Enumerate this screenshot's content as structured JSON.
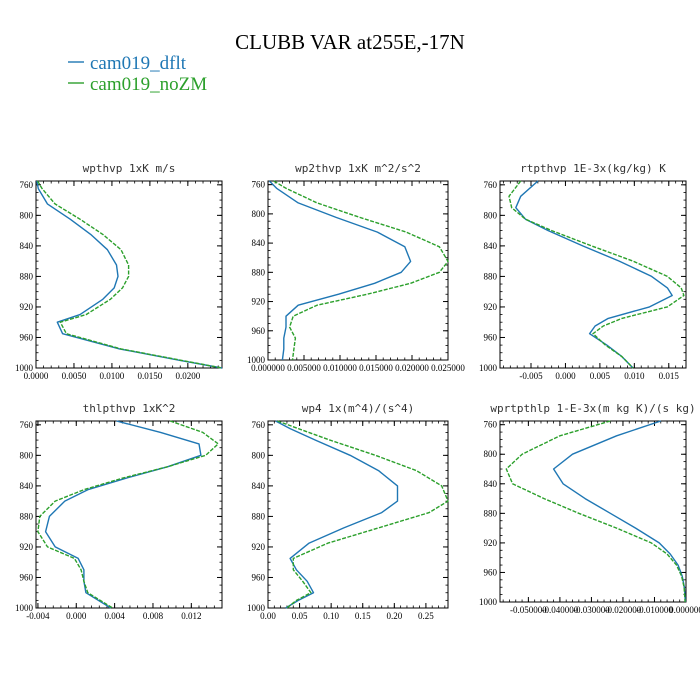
{
  "figure": {
    "title": "CLUBB VAR at255E,-17N",
    "legend": [
      {
        "name": "cam019_dflt",
        "color": "#1f77b4"
      },
      {
        "name": "cam019_noZM",
        "color": "#2ca02c"
      }
    ]
  },
  "chart_data": [
    {
      "type": "line",
      "title": "wpthvp  1xK m/s",
      "xlim": [
        0,
        0.0245
      ],
      "ylim": [
        1000,
        755
      ],
      "xticks": [
        0,
        0.005,
        0.01,
        0.015,
        0.02
      ],
      "xtick_labels": [
        "0.0000",
        "0.0050",
        "0.0100",
        "0.0150",
        "0.0200"
      ],
      "yticks": [
        760,
        800,
        840,
        880,
        920,
        960,
        1000
      ],
      "y": [
        755,
        765,
        785,
        805,
        825,
        845,
        865,
        880,
        895,
        910,
        930,
        940,
        955,
        975,
        990,
        1000
      ],
      "series": [
        {
          "name": "cam019_dflt",
          "x": [
            0.0001,
            0.0003,
            0.0015,
            0.0045,
            0.0072,
            0.0094,
            0.0106,
            0.0108,
            0.0103,
            0.0088,
            0.0058,
            0.0028,
            0.0035,
            0.011,
            0.019,
            0.0245
          ]
        },
        {
          "name": "cam019_noZM",
          "x": [
            0.0002,
            0.0008,
            0.0025,
            0.0058,
            0.0088,
            0.0112,
            0.0122,
            0.0122,
            0.0114,
            0.0098,
            0.0066,
            0.0032,
            0.004,
            0.0112,
            0.0192,
            0.0245
          ]
        }
      ]
    },
    {
      "type": "line",
      "title": "wp2thvp  1xK m^2/s^2",
      "xlim": [
        0,
        0.025
      ],
      "ylim": [
        1000,
        755
      ],
      "xticks": [
        0,
        0.005,
        0.01,
        0.015,
        0.02,
        0.025
      ],
      "xtick_labels": [
        "0.000000",
        "0.005000",
        "0.010000",
        "0.015000",
        "0.020000",
        "0.025000"
      ],
      "yticks": [
        760,
        800,
        840,
        880,
        920,
        960,
        1000
      ],
      "y": [
        755,
        765,
        785,
        805,
        825,
        845,
        865,
        880,
        895,
        910,
        925,
        940,
        955,
        970,
        985,
        1000
      ],
      "series": [
        {
          "name": "cam019_dflt",
          "x": [
            0.0002,
            0.0012,
            0.0042,
            0.0095,
            0.0152,
            0.019,
            0.0198,
            0.0185,
            0.0148,
            0.0098,
            0.0042,
            0.0025,
            0.0025,
            0.0022,
            0.0022,
            0.002
          ]
        },
        {
          "name": "cam019_noZM",
          "x": [
            0.0008,
            0.0025,
            0.0068,
            0.0128,
            0.0192,
            0.0238,
            0.025,
            0.0238,
            0.0198,
            0.0138,
            0.0068,
            0.0035,
            0.003,
            0.0038,
            0.0036,
            0.0034
          ]
        }
      ]
    },
    {
      "type": "line",
      "title": "rtpthvp  1E-3x(kg/kg) K",
      "xlim": [
        -0.0095,
        0.0175
      ],
      "ylim": [
        1000,
        755
      ],
      "xticks": [
        -0.005,
        0,
        0.005,
        0.01,
        0.015
      ],
      "xtick_labels": [
        "-0.005",
        "0.000",
        "0.005",
        "0.010",
        "0.015"
      ],
      "yticks": [
        760,
        800,
        840,
        880,
        920,
        960,
        1000
      ],
      "y": [
        755,
        775,
        790,
        805,
        820,
        840,
        860,
        880,
        895,
        905,
        920,
        935,
        945,
        955,
        970,
        985,
        1000
      ],
      "series": [
        {
          "name": "cam019_dflt",
          "x": [
            -0.004,
            -0.0065,
            -0.0072,
            -0.0058,
            -0.0025,
            0.0025,
            0.0078,
            0.0125,
            0.0148,
            0.0155,
            0.0122,
            0.0062,
            0.0043,
            0.0035,
            0.006,
            0.0082,
            0.0098
          ]
        },
        {
          "name": "cam019_noZM",
          "x": [
            -0.0065,
            -0.0082,
            -0.0078,
            -0.0058,
            -0.002,
            0.0038,
            0.0098,
            0.0148,
            0.0168,
            0.0172,
            0.0148,
            0.0082,
            0.0055,
            0.004,
            0.0058,
            0.0082,
            0.0098
          ]
        }
      ]
    },
    {
      "type": "line",
      "title": "thlpthvp  1xK^2",
      "xlim": [
        -0.0042,
        0.0152
      ],
      "ylim": [
        1000,
        755
      ],
      "xticks": [
        -0.004,
        0,
        0.004,
        0.008,
        0.012
      ],
      "xtick_labels": [
        "-0.004",
        "0.000",
        "0.004",
        "0.008",
        "0.012"
      ],
      "yticks": [
        760,
        800,
        840,
        880,
        920,
        960,
        1000
      ],
      "y": [
        755,
        770,
        785,
        800,
        815,
        830,
        845,
        860,
        880,
        900,
        920,
        935,
        950,
        965,
        980,
        1000
      ],
      "series": [
        {
          "name": "cam019_dflt",
          "x": [
            0.0042,
            0.0088,
            0.0128,
            0.013,
            0.0095,
            0.0052,
            0.0012,
            -0.0012,
            -0.0028,
            -0.0032,
            -0.0022,
            0.0002,
            0.0008,
            0.0008,
            0.001,
            0.0036
          ]
        },
        {
          "name": "cam019_noZM",
          "x": [
            0.0098,
            0.0132,
            0.0148,
            0.0135,
            0.0095,
            0.0048,
            0.0008,
            -0.0022,
            -0.0038,
            -0.004,
            -0.003,
            -0.0002,
            0.0005,
            0.0008,
            0.0012,
            0.0038
          ]
        }
      ]
    },
    {
      "type": "line",
      "title": "wp4  1x(m^4)/(s^4)",
      "xlim": [
        0,
        0.285
      ],
      "ylim": [
        1000,
        755
      ],
      "xticks": [
        0,
        0.05,
        0.1,
        0.15,
        0.2,
        0.25
      ],
      "xtick_labels": [
        "0.00",
        "0.05",
        "0.10",
        "0.15",
        "0.20",
        "0.25"
      ],
      "yticks": [
        760,
        800,
        840,
        880,
        920,
        960,
        1000
      ],
      "y": [
        755,
        765,
        780,
        800,
        820,
        840,
        860,
        875,
        895,
        915,
        935,
        950,
        965,
        980,
        990,
        1000
      ],
      "series": [
        {
          "name": "cam019_dflt",
          "x": [
            0.012,
            0.035,
            0.075,
            0.13,
            0.175,
            0.205,
            0.205,
            0.18,
            0.12,
            0.065,
            0.035,
            0.045,
            0.062,
            0.072,
            0.048,
            0.028
          ]
        },
        {
          "name": "cam019_noZM",
          "x": [
            0.015,
            0.048,
            0.098,
            0.17,
            0.235,
            0.275,
            0.285,
            0.255,
            0.175,
            0.095,
            0.04,
            0.04,
            0.055,
            0.068,
            0.045,
            0.03
          ]
        }
      ]
    },
    {
      "type": "line",
      "title": "wprtpthlp  1-E-3x(m kg K)/(s kg)",
      "xlim": [
        -0.059,
        0
      ],
      "ylim": [
        1000,
        755
      ],
      "xticks": [
        -0.05,
        -0.04,
        -0.03,
        -0.02,
        -0.01,
        0
      ],
      "xtick_labels": [
        "-0.050000",
        "-0.040000",
        "-0.030000",
        "-0.020000",
        "-0.010000",
        "0.000000"
      ],
      "yticks": [
        760,
        800,
        840,
        880,
        920,
        960,
        1000
      ],
      "y": [
        755,
        775,
        800,
        820,
        840,
        860,
        880,
        900,
        920,
        935,
        950,
        965,
        980,
        1000
      ],
      "series": [
        {
          "name": "cam019_dflt",
          "x": [
            -0.008,
            -0.022,
            -0.036,
            -0.042,
            -0.039,
            -0.032,
            -0.024,
            -0.016,
            -0.0085,
            -0.005,
            -0.0025,
            -0.0012,
            -0.0005,
            -0.0002
          ]
        },
        {
          "name": "cam019_noZM",
          "x": [
            -0.024,
            -0.04,
            -0.052,
            -0.057,
            -0.055,
            -0.045,
            -0.034,
            -0.022,
            -0.011,
            -0.006,
            -0.003,
            -0.0014,
            -0.0006,
            -0.0003
          ]
        }
      ]
    }
  ]
}
